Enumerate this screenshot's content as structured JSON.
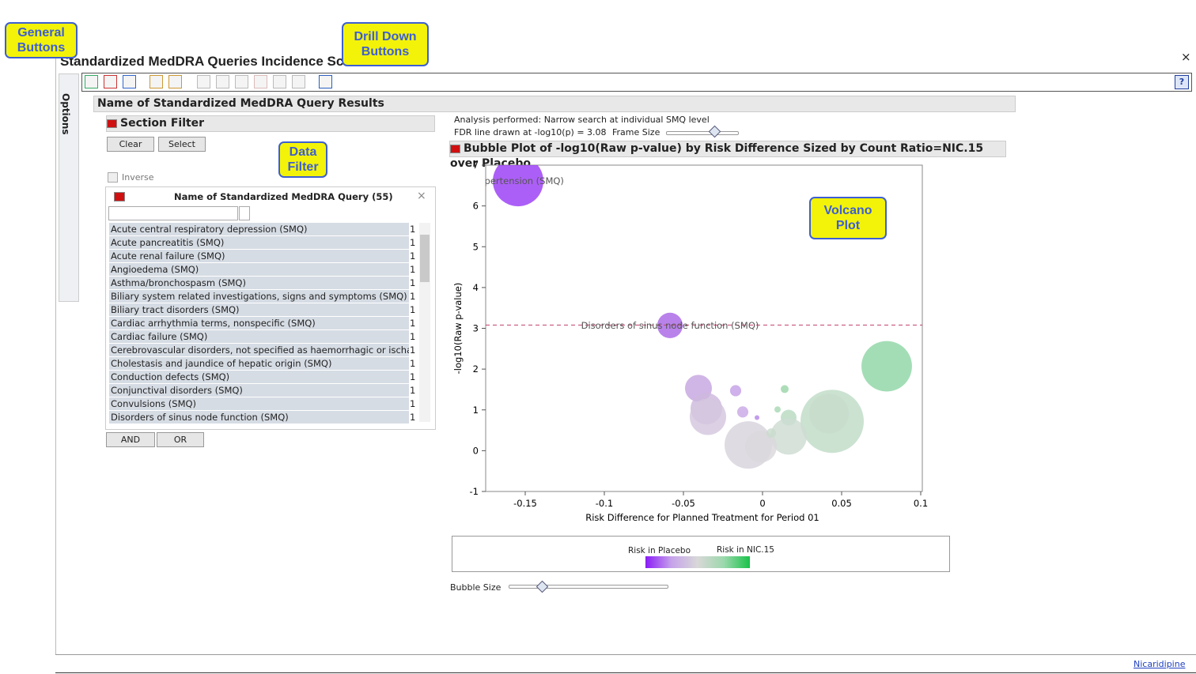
{
  "window": {
    "title": "Standardized MedDRA Queries Incidence Screen",
    "options_tab": "Options",
    "help": "?",
    "close": "×",
    "footer_link": "Nicaridipine"
  },
  "callouts": {
    "general": "General Buttons",
    "drill_down": "Drill Down Buttons",
    "data_filter": "Data Filter",
    "volcano": "Volcano Plot"
  },
  "report": {
    "title": "Name of Standardized MedDRA Query Results",
    "analysis_text": "Analysis performed: Narrow search at individual SMQ level",
    "fdr_text": "FDR line drawn at -log10(p) = 3.08",
    "frame_size": "Frame Size",
    "bubble_size": "Bubble Size"
  },
  "filter": {
    "title": "Section Filter",
    "clear": "Clear",
    "select": "Select",
    "inverse": "Inverse",
    "list_title": "Name of Standardized MedDRA Query (55)",
    "and": "AND",
    "or": "OR",
    "items": [
      {
        "name": "Acute central respiratory depression (SMQ)",
        "count": 1
      },
      {
        "name": "Acute pancreatitis (SMQ)",
        "count": 1
      },
      {
        "name": "Acute renal failure (SMQ)",
        "count": 1
      },
      {
        "name": "Angioedema (SMQ)",
        "count": 1
      },
      {
        "name": "Asthma/bronchospasm (SMQ)",
        "count": 1
      },
      {
        "name": "Biliary system related investigations, signs and symptoms (SMQ)",
        "count": 1
      },
      {
        "name": "Biliary tract disorders (SMQ)",
        "count": 1
      },
      {
        "name": "Cardiac arrhythmia terms, nonspecific (SMQ)",
        "count": 1
      },
      {
        "name": "Cardiac failure (SMQ)",
        "count": 1
      },
      {
        "name": "Cerebrovascular disorders, not specified as haemorrhagic or ischaemi...",
        "count": 1
      },
      {
        "name": "Cholestasis and jaundice of hepatic origin (SMQ)",
        "count": 1
      },
      {
        "name": "Conduction defects (SMQ)",
        "count": 1
      },
      {
        "name": "Conjunctival disorders (SMQ)",
        "count": 1
      },
      {
        "name": "Convulsions (SMQ)",
        "count": 1
      },
      {
        "name": "Disorders of sinus node function (SMQ)",
        "count": 1
      }
    ]
  },
  "chart_data": {
    "type": "scatter",
    "title": "Bubble Plot of -log10(Raw p-value) by Risk Difference Sized by Count Ratio=NIC.15 over Placebo",
    "x_label": "Risk Difference for Planned Treatment for Period 01",
    "y_label": "-log10(Raw p-value)",
    "xlim": [
      -0.175,
      0.101
    ],
    "ylim": [
      -1,
      7
    ],
    "xticks": [
      -0.15,
      -0.1,
      -0.05,
      0,
      0.05,
      0.1
    ],
    "yticks": [
      -1,
      0,
      1,
      2,
      3,
      4,
      5,
      6,
      7
    ],
    "fdr_line": 3.08,
    "fdr_color": "#c0406a",
    "x": [
      -0.1545,
      -0.0585,
      0.0785,
      -0.0405,
      -0.017,
      0.014,
      -0.0355,
      -0.0345,
      -0.0125,
      -0.0035,
      0.0095,
      0.0165,
      0.044,
      0.042,
      0.0165,
      -0.009,
      -0.001,
      0.0055
    ],
    "values": [
      6.61,
      3.07,
      2.07,
      1.53,
      1.47,
      1.51,
      1.03,
      0.83,
      0.95,
      0.81,
      1.01,
      0.81,
      0.72,
      0.91,
      0.35,
      0.14,
      0.1,
      0.43
    ],
    "sizes": [
      10.2,
      2.6,
      10.2,
      2.9,
      0.5,
      0.25,
      4,
      5.3,
      0.5,
      0.09,
      0.16,
      1,
      16,
      6.3,
      5.3,
      9,
      4,
      0.36
    ],
    "colors": [
      "#9a3cf5",
      "#aa66e6",
      "#8fd6a6",
      "#c6a6e0",
      "#c4a0e6",
      "#9bd5a8",
      "#cdb8dd",
      "#d4c7de",
      "#c9a8e6",
      "#b488e8",
      "#a8d8b5",
      "#b8dbc1",
      "#c0dcc7",
      "#c8dccc",
      "#cddcd2",
      "#d8d3dc",
      "#dad8dc",
      "#c9dccd"
    ],
    "point_labels": [
      "Hypertension (SMQ)",
      "Disorders of sinus node function (SMQ)",
      null,
      null,
      null,
      null,
      null,
      null,
      null,
      null,
      null,
      null,
      null,
      null,
      null,
      null,
      null,
      null
    ],
    "legend": {
      "low": "Risk in Placebo",
      "high": "Risk in NIC.15"
    }
  }
}
